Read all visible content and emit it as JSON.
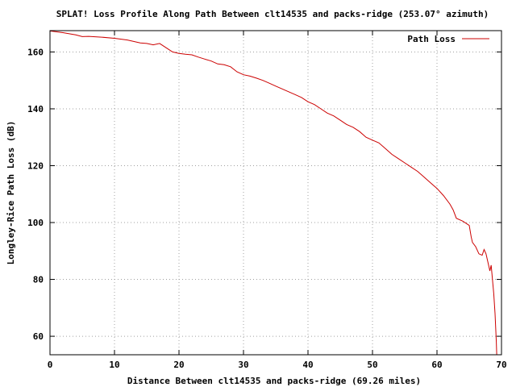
{
  "chart_data": {
    "type": "line",
    "title": "SPLAT! Loss Profile Along Path Between clt14535 and packs-ridge (253.07° azimuth)",
    "xlabel": "Distance Between clt14535 and packs-ridge (69.26 miles)",
    "ylabel": "Longley-Rice Path Loss (dB)",
    "xlim": [
      0,
      70
    ],
    "ylim": [
      53.5,
      167.5
    ],
    "xticks": [
      0,
      10,
      20,
      30,
      40,
      50,
      60,
      70
    ],
    "yticks": [
      60,
      80,
      100,
      120,
      140,
      160
    ],
    "grid": true,
    "legend_position": "top-right",
    "series": [
      {
        "name": "Path Loss",
        "color": "#cc0000",
        "x": [
          0,
          2,
          4,
          5,
          6,
          8,
          10,
          12,
          14,
          15,
          16,
          17,
          18,
          19,
          20,
          21,
          22,
          23,
          24,
          25,
          26,
          27,
          28,
          29,
          30,
          31,
          32,
          33,
          34,
          35,
          36,
          37,
          38,
          39,
          40,
          41,
          42,
          43,
          44,
          45,
          46,
          47,
          48,
          49,
          50,
          51,
          52,
          53,
          54,
          55,
          56,
          57,
          58,
          59,
          60,
          61,
          62,
          62.5,
          63,
          64,
          65,
          65.3,
          65.5,
          66,
          66.5,
          67,
          67.3,
          67.6,
          67.9,
          68.2,
          68.4,
          68.6,
          68.8,
          69,
          69.1,
          69.2,
          69.26
        ],
        "values": [
          167.4,
          166.8,
          166.0,
          165.4,
          165.5,
          165.2,
          164.8,
          164.2,
          163.2,
          163.0,
          162.5,
          163.0,
          161.5,
          160.0,
          159.5,
          159.2,
          159.0,
          158.2,
          157.5,
          156.8,
          155.8,
          155.5,
          154.8,
          153.0,
          152.0,
          151.5,
          150.8,
          150.0,
          149.0,
          148.0,
          147.0,
          146.0,
          145.0,
          144.0,
          142.5,
          141.5,
          140.0,
          138.5,
          137.5,
          136.0,
          134.5,
          133.5,
          132.0,
          130.0,
          129.0,
          128.0,
          126.0,
          124.0,
          122.5,
          121.0,
          119.5,
          118.0,
          116.0,
          114.0,
          112.0,
          109.5,
          106.5,
          104.5,
          101.5,
          100.5,
          99.0,
          95.0,
          93.0,
          91.5,
          89.0,
          88.5,
          90.5,
          89.0,
          86.0,
          83.0,
          85.0,
          80.0,
          75.0,
          68.0,
          63.0,
          58.0,
          53.5
        ]
      }
    ]
  }
}
